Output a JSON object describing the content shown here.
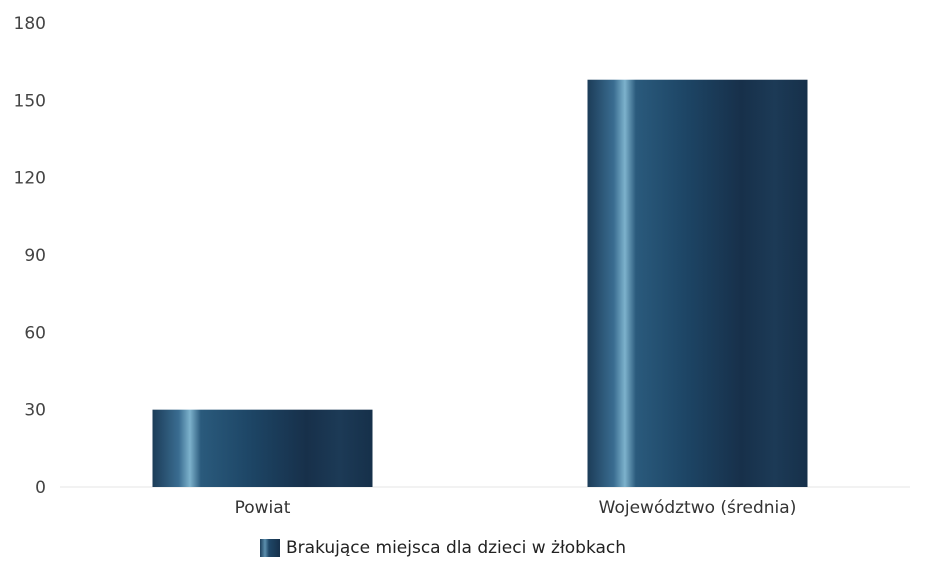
{
  "chart_data": {
    "type": "bar",
    "categories": [
      "Powiat",
      "Województwo (średnia)"
    ],
    "series": [
      {
        "name": "Brakujące miejsca dla dzieci w żłobkach",
        "values": [
          30,
          158
        ]
      }
    ],
    "ylim": [
      0,
      180
    ],
    "yticks": [
      0,
      30,
      60,
      90,
      120,
      150,
      180
    ],
    "grid": false,
    "legend_position": "bottom",
    "colors": {
      "bar_dark": "#17304a",
      "bar_mid": "#1f4a6b",
      "bar_light": "#6fa3c0"
    }
  }
}
